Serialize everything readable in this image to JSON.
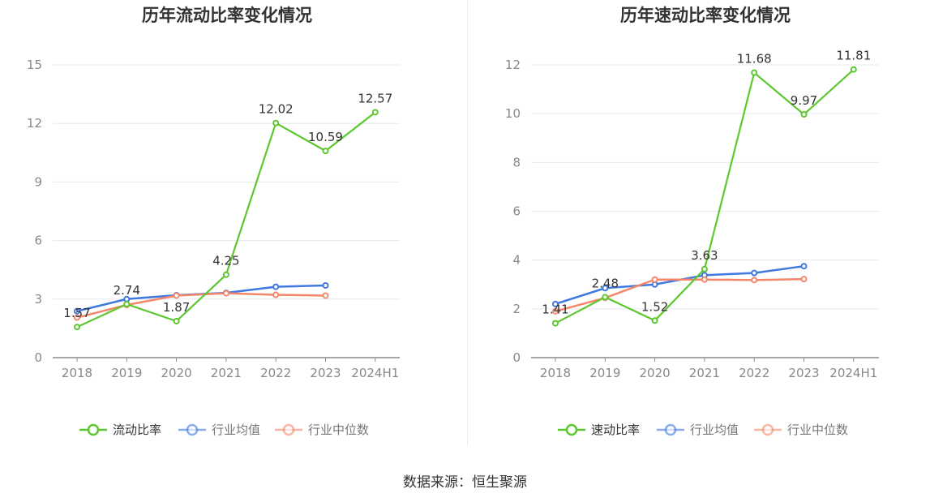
{
  "chart_data": [
    {
      "type": "line",
      "title": "历年流动比率变化情况",
      "categories": [
        "2018",
        "2019",
        "2020",
        "2021",
        "2022",
        "2023",
        "2024H1"
      ],
      "yticks": [
        "0",
        "3",
        "6",
        "9",
        "12",
        "15"
      ],
      "ylim": [
        0,
        15
      ],
      "grid": true,
      "legend_position": "bottom",
      "series": [
        {
          "name": "流动比率",
          "color": "#5cc72e",
          "values": [
            1.57,
            2.74,
            1.87,
            4.25,
            12.02,
            10.59,
            12.57
          ],
          "labels": [
            "1.57",
            "2.74",
            "1.87",
            "4.25",
            "12.02",
            "10.59",
            "12.57"
          ]
        },
        {
          "name": "行业均值",
          "color": "#3f78e0",
          "values": [
            2.38,
            3.0,
            3.2,
            3.32,
            3.63,
            3.7,
            null
          ]
        },
        {
          "name": "行业中位数",
          "color": "#f4876a",
          "values": [
            2.05,
            2.7,
            3.18,
            3.3,
            3.22,
            3.18,
            null
          ]
        }
      ]
    },
    {
      "type": "line",
      "title": "历年速动比率变化情况",
      "categories": [
        "2018",
        "2019",
        "2020",
        "2021",
        "2022",
        "2023",
        "2024H1"
      ],
      "yticks": [
        "0",
        "2",
        "4",
        "6",
        "8",
        "10",
        "12"
      ],
      "ylim": [
        0,
        12
      ],
      "grid": true,
      "legend_position": "bottom",
      "series": [
        {
          "name": "速动比率",
          "color": "#5cc72e",
          "values": [
            1.41,
            2.48,
            1.52,
            3.63,
            11.68,
            9.97,
            11.81
          ],
          "labels": [
            "1.41",
            "2.48",
            "1.52",
            "3.63",
            "11.68",
            "9.97",
            "11.81"
          ]
        },
        {
          "name": "行业均值",
          "color": "#3f78e0",
          "values": [
            2.2,
            2.85,
            3.0,
            3.38,
            3.47,
            3.75,
            null
          ]
        },
        {
          "name": "行业中位数",
          "color": "#f4876a",
          "values": [
            1.9,
            2.45,
            3.2,
            3.2,
            3.18,
            3.22,
            null
          ]
        }
      ]
    }
  ],
  "footer": {
    "source": "数据来源：恒生聚源"
  }
}
